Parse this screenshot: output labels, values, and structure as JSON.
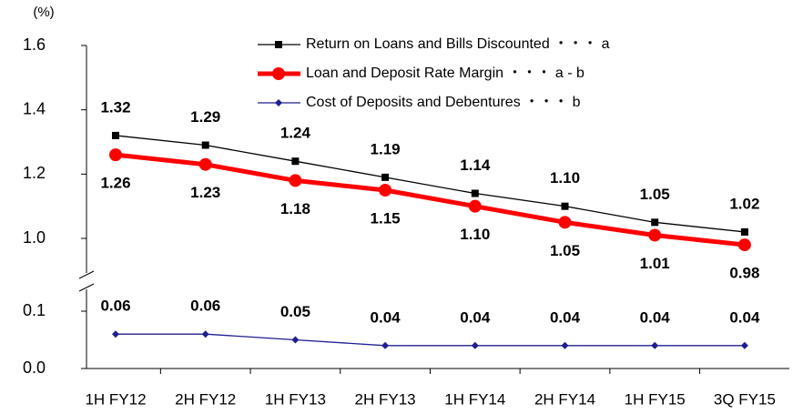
{
  "chart_data": {
    "type": "line",
    "y_label": "(%)",
    "categories": [
      "1H FY12",
      "2H FY12",
      "1H FY13",
      "2H FY13",
      "1H FY14",
      "2H FY14",
      "1H FY15",
      "3Q FY15"
    ],
    "series": [
      {
        "name": "Return on Loans and Bills Discounted ・・・ a",
        "color": "#000000",
        "marker": "square",
        "label_side": "above",
        "values": [
          1.32,
          1.29,
          1.24,
          1.19,
          1.14,
          1.1,
          1.05,
          1.02
        ],
        "value_labels": [
          "1.32",
          "1.29",
          "1.24",
          "1.19",
          "1.14",
          "1.10",
          "1.05",
          "1.02"
        ]
      },
      {
        "name": "Loan and Deposit Rate Margin ・・・ a - b",
        "color": "#ff0000",
        "marker": "circle",
        "label_side": "below",
        "values": [
          1.26,
          1.23,
          1.18,
          1.15,
          1.1,
          1.05,
          1.01,
          0.98
        ],
        "value_labels": [
          "1.26",
          "1.23",
          "1.18",
          "1.15",
          "1.10",
          "1.05",
          "1.01",
          "0.98"
        ]
      },
      {
        "name": "Cost of Deposits and Debentures ・・・ b",
        "color": "#1f1f8f",
        "marker": "diamond",
        "label_side": "above",
        "values": [
          0.06,
          0.06,
          0.05,
          0.04,
          0.04,
          0.04,
          0.04,
          0.04
        ],
        "value_labels": [
          "0.06",
          "0.06",
          "0.05",
          "0.04",
          "0.04",
          "0.04",
          "0.04",
          "0.04"
        ]
      }
    ],
    "ylim": [
      0,
      1.6
    ],
    "axis_break": [
      0.1,
      1.0
    ],
    "yticks": [
      {
        "value": 0,
        "label": "0.0"
      },
      0.1,
      {
        "value": 1,
        "label": "1.0"
      },
      1.2,
      1.4,
      1.6
    ],
    "legend": "top"
  }
}
